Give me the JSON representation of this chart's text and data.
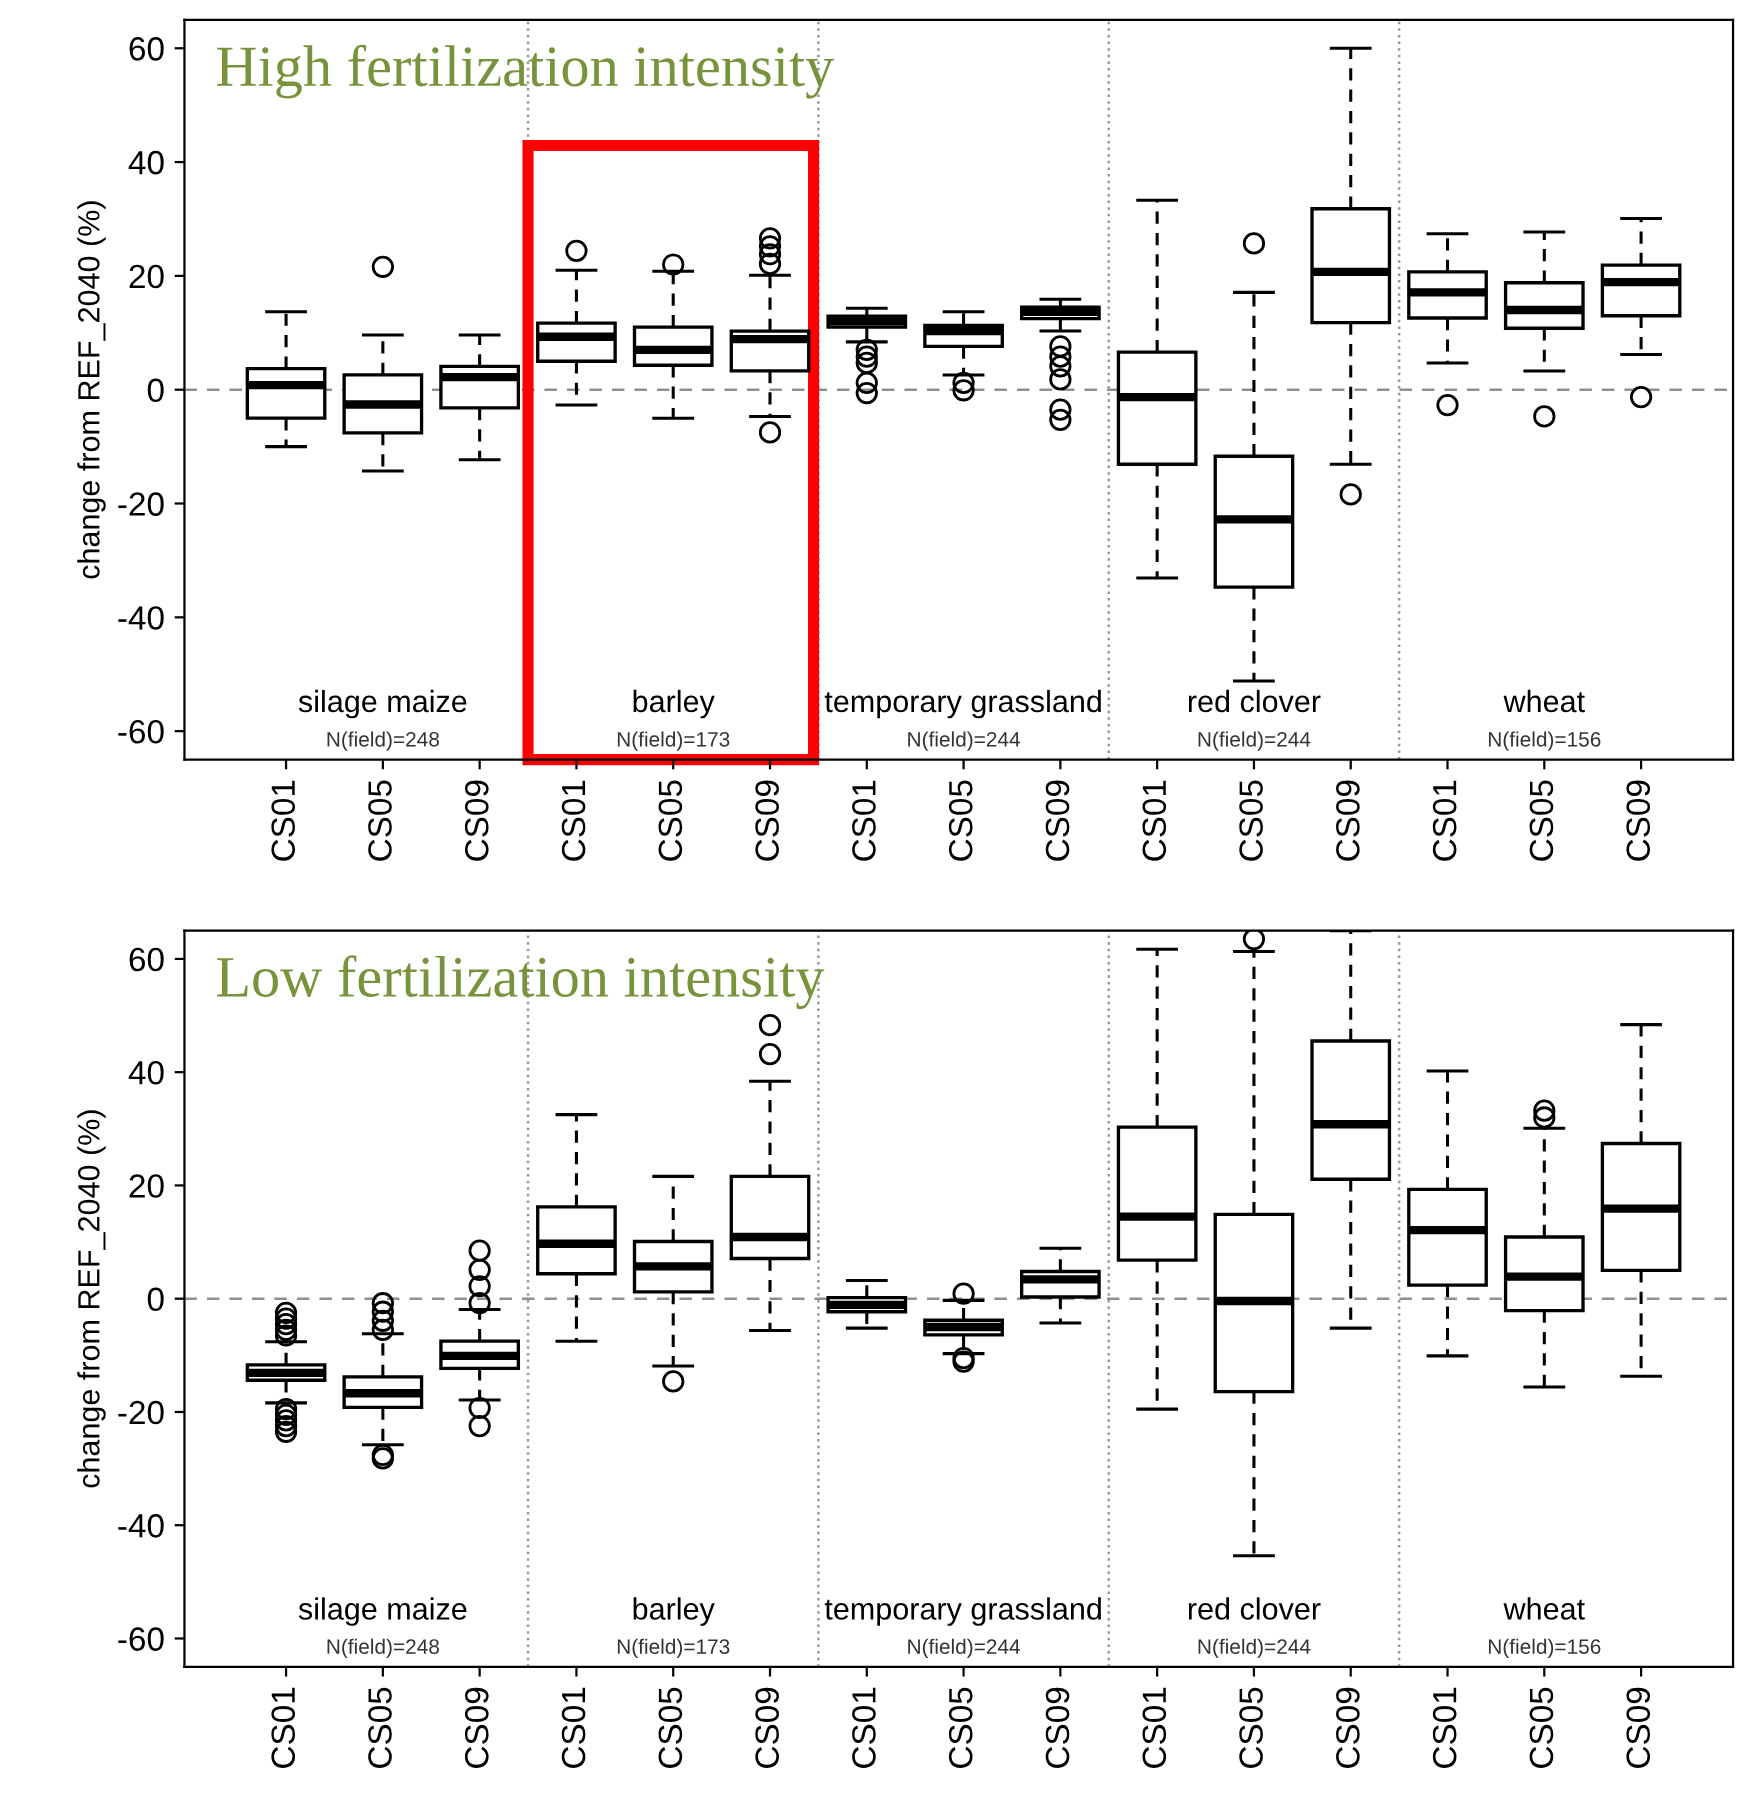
{
  "chart_data": [
    {
      "type": "box",
      "title": "High fertilization intensity",
      "ylabel": "change from REF_2040 (%)",
      "categories": [
        "CS01",
        "CS05",
        "CS09",
        "CS01",
        "CS05",
        "CS09",
        "CS01",
        "CS05",
        "CS09",
        "CS01",
        "CS05",
        "CS09",
        "CS01",
        "CS05",
        "CS09"
      ],
      "boxes": [
        {
          "low": -10,
          "q1": -5,
          "median": 0.8,
          "q3": 3.7,
          "high": 13.7
        },
        {
          "low": -14.3,
          "q1": -7.6,
          "median": -2.6,
          "q3": 2.6,
          "high": 9.6,
          "outliers": [
            21.6
          ]
        },
        {
          "low": -12.3,
          "q1": -3.2,
          "median": 2.2,
          "q3": 4.1,
          "high": 9.6
        },
        {
          "low": -2.7,
          "q1": 5,
          "median": 9.3,
          "q3": 11.7,
          "high": 21,
          "outliers": [
            24.4
          ]
        },
        {
          "low": -5,
          "q1": 4.3,
          "median": 7,
          "q3": 11,
          "high": 20.8,
          "outliers": [
            22
          ]
        },
        {
          "low": -4.7,
          "q1": 3.3,
          "median": 8.9,
          "q3": 10.3,
          "high": 20.1,
          "outliers": [
            26.6,
            25.2,
            23.8,
            22.1,
            -7.5
          ]
        },
        {
          "low": 8.4,
          "q1": 11,
          "median": 12,
          "q3": 12.9,
          "high": 14.3,
          "outliers": [
            7,
            5.8,
            4.7,
            1.2,
            -0.6
          ]
        },
        {
          "low": 2.6,
          "q1": 7.6,
          "median": 10.3,
          "q3": 11.3,
          "high": 13.7,
          "outliers": [
            1.2,
            -0.1
          ]
        },
        {
          "low": 10.3,
          "q1": 12.5,
          "median": 13.7,
          "q3": 14.5,
          "high": 15.9,
          "outliers": [
            7.6,
            5.8,
            4.1,
            1.8,
            -3.5,
            -5.3
          ]
        },
        {
          "low": -33.1,
          "q1": -13.1,
          "median": -1.3,
          "q3": 6.6,
          "high": 33.3
        },
        {
          "low": -51.2,
          "q1": -34.7,
          "median": -22.8,
          "q3": -11.7,
          "high": 17.1,
          "outliers": [
            25.7
          ]
        },
        {
          "low": -13.1,
          "q1": 11.8,
          "median": 20.7,
          "q3": 31.8,
          "high": 60,
          "outliers": [
            -18.4
          ]
        },
        {
          "low": 4.7,
          "q1": 12.6,
          "median": 17.1,
          "q3": 20.7,
          "high": 27.4,
          "outliers": [
            -2.7
          ]
        },
        {
          "low": 3.3,
          "q1": 10.8,
          "median": 14,
          "q3": 18.8,
          "high": 27.7,
          "outliers": [
            -4.7
          ]
        },
        {
          "low": 6.2,
          "q1": 13,
          "median": 18.9,
          "q3": 21.9,
          "high": 30.1,
          "outliers": [
            -1.3
          ]
        }
      ],
      "ylim": [
        -65,
        65
      ],
      "yticks": [
        -60,
        -40,
        -20,
        0,
        20,
        40,
        60
      ],
      "ref_lines": [
        {
          "axis": "y",
          "value": 0,
          "color": "#909090",
          "line_style": "dashed"
        }
      ],
      "annotations": [
        "silage maize",
        "N(field)=248",
        "barley",
        "N(field)=173",
        "temporary grassland",
        "N(field)=244",
        "red clover",
        "N(field)=244",
        "wheat",
        "N(field)=156"
      ]
    },
    {
      "type": "box",
      "title": "Low fertilization intensity",
      "ylabel": "change from REF_2040 (%)",
      "categories": [
        "CS01",
        "CS05",
        "CS09",
        "CS01",
        "CS05",
        "CS09",
        "CS01",
        "CS05",
        "CS09",
        "CS01",
        "CS05",
        "CS09",
        "CS01",
        "CS05",
        "CS09"
      ],
      "boxes": [
        {
          "low": -18.4,
          "q1": -14.4,
          "median": -13.1,
          "q3": -11.7,
          "high": -7.6,
          "outliers": [
            -2.5,
            -3.5,
            -4.5,
            -5.5,
            -6.5,
            -19.5,
            -20.5,
            -21.5,
            -22.5,
            -23.5
          ]
        },
        {
          "low": -25.8,
          "q1": -19.2,
          "median": -16.7,
          "q3": -13.8,
          "high": -6.2,
          "outliers": [
            -0.8,
            -2.3,
            -3.9,
            -5.5,
            -27.6,
            -28.2
          ]
        },
        {
          "low": -17.9,
          "q1": -12.3,
          "median": -10.1,
          "q3": -7.5,
          "high": -1.9,
          "outliers": [
            8.5,
            5.1,
            2.2,
            -0.8,
            -19.3,
            -22.5
          ]
        },
        {
          "low": -7.5,
          "q1": 4.4,
          "median": 9.7,
          "q3": 16.2,
          "high": 32.5
        },
        {
          "low": -11.9,
          "q1": 1.2,
          "median": 5.7,
          "q3": 10.1,
          "high": 21.6,
          "outliers": [
            -14.6
          ]
        },
        {
          "low": -5.6,
          "q1": 7.1,
          "median": 10.9,
          "q3": 21.6,
          "high": 38.4,
          "outliers": [
            48.3,
            43.2
          ]
        },
        {
          "low": -5.2,
          "q1": -2.3,
          "median": -1.1,
          "q3": 0.2,
          "high": 3.2
        },
        {
          "low": -9.7,
          "q1": -6.4,
          "median": -5,
          "q3": -3.8,
          "high": -0.3,
          "outliers": [
            0.9,
            -10.5,
            -11.1
          ]
        },
        {
          "low": -4.3,
          "q1": 0.3,
          "median": 3.4,
          "q3": 4.8,
          "high": 8.9
        },
        {
          "low": -19.5,
          "q1": 6.8,
          "median": 14.5,
          "q3": 30.3,
          "high": 61.7
        },
        {
          "low": -45.4,
          "q1": -16.4,
          "median": -0.4,
          "q3": 14.9,
          "high": 61.3,
          "outliers": [
            63.5
          ]
        },
        {
          "low": -5.2,
          "q1": 21.1,
          "median": 30.8,
          "q3": 45.5,
          "high": 65
        },
        {
          "low": -10.1,
          "q1": 2.4,
          "median": 12.1,
          "q3": 19.3,
          "high": 40.2
        },
        {
          "low": -15.6,
          "q1": -2.1,
          "median": 3.9,
          "q3": 10.9,
          "high": 30.1,
          "outliers": [
            33.2,
            32
          ]
        },
        {
          "low": -13.7,
          "q1": 5,
          "median": 15.9,
          "q3": 27.4,
          "high": 48.4
        }
      ],
      "ylim": [
        -65,
        65
      ],
      "yticks": [
        -60,
        -40,
        -20,
        0,
        20,
        40,
        60
      ],
      "ref_lines": [
        {
          "axis": "y",
          "value": 0,
          "color": "#909090",
          "line_style": "dashed"
        }
      ],
      "annotations": [
        "silage maize",
        "N(field)=248",
        "barley",
        "N(field)=173",
        "temporary grassland",
        "N(field)=244",
        "red clover",
        "N(field)=244",
        "wheat",
        "N(field)=156"
      ]
    }
  ]
}
